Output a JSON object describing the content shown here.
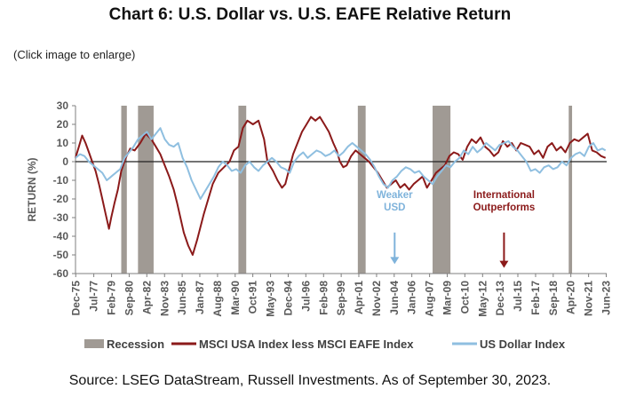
{
  "header": {
    "title": "Chart 6: U.S. Dollar vs. U.S. EAFE Relative Return",
    "note": "(Click image to enlarge)"
  },
  "footer": {
    "source": "Source: LSEG DataStream, Russell Investments. As of September 30, 2023."
  },
  "chart_data": {
    "type": "line",
    "title": "",
    "ylabel": "RETURN (%)",
    "xlabel": "",
    "ylim": [
      -60,
      30
    ],
    "y_ticks": [
      30,
      20,
      10,
      0,
      -10,
      -20,
      -30,
      -40,
      -50,
      -60
    ],
    "x_range": [
      1975.9,
      2023.5
    ],
    "x_tick_labels": [
      {
        "label": "Dec-75",
        "x": 1975.92
      },
      {
        "label": "Jul-77",
        "x": 1977.54
      },
      {
        "label": "Feb-79",
        "x": 1979.13
      },
      {
        "label": "Sep-80",
        "x": 1980.71
      },
      {
        "label": "Apr-82",
        "x": 1982.29
      },
      {
        "label": "Nov-83",
        "x": 1983.88
      },
      {
        "label": "Jun-85",
        "x": 1985.46
      },
      {
        "label": "Jan-87",
        "x": 1987.04
      },
      {
        "label": "Aug-88",
        "x": 1988.63
      },
      {
        "label": "Mar-90",
        "x": 1990.21
      },
      {
        "label": "Oct-91",
        "x": 1991.79
      },
      {
        "label": "May-93",
        "x": 1993.38
      },
      {
        "label": "Dec-94",
        "x": 1994.96
      },
      {
        "label": "Jul-96",
        "x": 1996.54
      },
      {
        "label": "Feb-98",
        "x": 1998.13
      },
      {
        "label": "Sep-99",
        "x": 1999.71
      },
      {
        "label": "Apr-01",
        "x": 2001.29
      },
      {
        "label": "Nov-02",
        "x": 2002.88
      },
      {
        "label": "Jun-04",
        "x": 2004.46
      },
      {
        "label": "Jan-06",
        "x": 2006.04
      },
      {
        "label": "Aug-07",
        "x": 2007.63
      },
      {
        "label": "Mar-09",
        "x": 2009.21
      },
      {
        "label": "Oct-10",
        "x": 2010.79
      },
      {
        "label": "May-12",
        "x": 2012.38
      },
      {
        "label": "Dec-13",
        "x": 2013.96
      },
      {
        "label": "Jul-15",
        "x": 2015.54
      },
      {
        "label": "Feb-17",
        "x": 2017.13
      },
      {
        "label": "Sep-18",
        "x": 2018.71
      },
      {
        "label": "Apr-20",
        "x": 2020.29
      },
      {
        "label": "Nov-21",
        "x": 2021.88
      },
      {
        "label": "Jun-23",
        "x": 2023.46
      }
    ],
    "recessions": [
      [
        1980.0,
        1980.5
      ],
      [
        1981.5,
        1982.9
      ],
      [
        1990.5,
        1991.2
      ],
      [
        2001.2,
        2001.9
      ],
      [
        2007.9,
        2009.5
      ],
      [
        2020.1,
        2020.4
      ]
    ],
    "series": [
      {
        "name": "MSCI USA Index less MSCI EAFE Index",
        "color": "#8b1a1a",
        "x": [
          1975.9,
          1976.2,
          1976.5,
          1976.8,
          1977.1,
          1977.4,
          1977.7,
          1978.0,
          1978.3,
          1978.6,
          1978.9,
          1979.1,
          1979.4,
          1979.7,
          1980.0,
          1980.4,
          1980.8,
          1981.2,
          1981.7,
          1982.2,
          1982.7,
          1983.1,
          1983.5,
          1983.9,
          1984.3,
          1984.7,
          1985.0,
          1985.3,
          1985.6,
          1986.0,
          1986.4,
          1986.8,
          1987.1,
          1987.4,
          1987.8,
          1988.2,
          1988.7,
          1989.2,
          1989.7,
          1990.1,
          1990.5,
          1990.9,
          1991.3,
          1991.8,
          1992.3,
          1992.8,
          1993.1,
          1993.6,
          1994.0,
          1994.4,
          1994.7,
          1995.0,
          1995.4,
          1995.8,
          1996.2,
          1996.6,
          1997.0,
          1997.4,
          1997.8,
          1998.2,
          1998.6,
          1999.0,
          1999.3,
          1999.6,
          1999.9,
          2000.2,
          2000.6,
          2001.0,
          2001.4,
          2001.8,
          2002.2,
          2002.6,
          2003.0,
          2003.4,
          2003.8,
          2004.2,
          2004.6,
          2005.0,
          2005.4,
          2005.8,
          2006.2,
          2006.6,
          2007.0,
          2007.4,
          2007.8,
          2008.2,
          2008.6,
          2009.0,
          2009.4,
          2009.8,
          2010.2,
          2010.6,
          2011.0,
          2011.4,
          2011.8,
          2012.2,
          2012.6,
          2013.0,
          2013.4,
          2013.8,
          2014.2,
          2014.6,
          2015.0,
          2015.4,
          2015.8,
          2016.2,
          2016.6,
          2017.0,
          2017.4,
          2017.8,
          2018.2,
          2018.6,
          2019.0,
          2019.4,
          2019.8,
          2020.2,
          2020.6,
          2021.0,
          2021.4,
          2021.8,
          2022.2,
          2022.6,
          2023.0,
          2023.4
        ],
        "values": [
          2,
          8,
          14,
          10,
          5,
          0,
          -5,
          -12,
          -20,
          -28,
          -36,
          -30,
          -22,
          -15,
          -5,
          2,
          7,
          6,
          10,
          15,
          12,
          8,
          4,
          -2,
          -8,
          -15,
          -22,
          -30,
          -38,
          -45,
          -50,
          -42,
          -35,
          -28,
          -20,
          -12,
          -6,
          -3,
          0,
          6,
          8,
          18,
          22,
          20,
          22,
          12,
          0,
          -5,
          -10,
          -14,
          -12,
          -5,
          4,
          10,
          16,
          20,
          24,
          22,
          24,
          20,
          16,
          10,
          6,
          0,
          -3,
          -2,
          3,
          6,
          4,
          2,
          0,
          -3,
          -6,
          -10,
          -14,
          -12,
          -10,
          -14,
          -12,
          -15,
          -12,
          -10,
          -8,
          -14,
          -10,
          -6,
          -4,
          -2,
          3,
          5,
          4,
          1,
          8,
          12,
          10,
          13,
          8,
          6,
          3,
          5,
          11,
          8,
          10,
          6,
          10,
          9,
          8,
          4,
          6,
          2,
          8,
          10,
          6,
          8,
          5,
          10,
          12,
          11,
          13,
          15,
          6,
          5,
          3,
          2
        ]
      },
      {
        "name": "US Dollar Index",
        "color": "#8fbfe0",
        "x": [
          1975.9,
          1976.3,
          1976.7,
          1977.1,
          1977.5,
          1977.9,
          1978.3,
          1978.7,
          1979.1,
          1979.5,
          1979.9,
          1980.3,
          1980.7,
          1981.1,
          1981.5,
          1981.9,
          1982.3,
          1982.7,
          1983.1,
          1983.5,
          1983.9,
          1984.3,
          1984.7,
          1985.1,
          1985.5,
          1985.9,
          1986.3,
          1986.7,
          1987.1,
          1987.5,
          1987.9,
          1988.3,
          1988.7,
          1989.1,
          1989.5,
          1989.9,
          1990.3,
          1990.7,
          1991.1,
          1991.5,
          1991.9,
          1992.3,
          1992.7,
          1993.1,
          1993.5,
          1993.9,
          1994.3,
          1994.7,
          1995.1,
          1995.5,
          1995.9,
          1996.3,
          1996.7,
          1997.1,
          1997.5,
          1997.9,
          1998.3,
          1998.7,
          1999.1,
          1999.5,
          1999.9,
          2000.3,
          2000.7,
          2001.1,
          2001.5,
          2001.9,
          2002.3,
          2002.7,
          2003.1,
          2003.5,
          2003.9,
          2004.3,
          2004.7,
          2005.1,
          2005.5,
          2005.9,
          2006.3,
          2006.7,
          2007.1,
          2007.5,
          2007.9,
          2008.3,
          2008.7,
          2009.1,
          2009.5,
          2009.9,
          2010.3,
          2010.7,
          2011.1,
          2011.5,
          2011.9,
          2012.3,
          2012.7,
          2013.1,
          2013.5,
          2013.9,
          2014.3,
          2014.7,
          2015.1,
          2015.5,
          2015.9,
          2016.3,
          2016.7,
          2017.1,
          2017.5,
          2017.9,
          2018.3,
          2018.7,
          2019.1,
          2019.5,
          2019.9,
          2020.3,
          2020.7,
          2021.1,
          2021.5,
          2021.9,
          2022.3,
          2022.7,
          2023.1,
          2023.4
        ],
        "values": [
          2,
          4,
          3,
          0,
          -2,
          -4,
          -6,
          -10,
          -8,
          -6,
          -4,
          2,
          5,
          8,
          12,
          14,
          16,
          12,
          15,
          18,
          12,
          9,
          8,
          10,
          2,
          -3,
          -10,
          -15,
          -20,
          -16,
          -12,
          -8,
          -3,
          0,
          -2,
          -5,
          -4,
          -6,
          -2,
          0,
          -3,
          -5,
          -2,
          0,
          2,
          0,
          -3,
          -4,
          -6,
          0,
          3,
          5,
          2,
          4,
          6,
          5,
          3,
          4,
          6,
          3,
          5,
          8,
          10,
          8,
          6,
          4,
          1,
          -3,
          -8,
          -12,
          -14,
          -10,
          -8,
          -5,
          -3,
          -4,
          -6,
          -5,
          -8,
          -10,
          -12,
          -8,
          -5,
          -2,
          -3,
          0,
          2,
          6,
          4,
          8,
          5,
          7,
          10,
          8,
          6,
          9,
          10,
          11,
          8,
          6,
          3,
          0,
          -5,
          -4,
          -6,
          -3,
          -2,
          -4,
          -3,
          0,
          -2,
          2,
          4,
          5,
          3,
          8,
          10,
          6,
          7,
          6
        ]
      }
    ],
    "recession_color": "#a09a94",
    "legend": {
      "placement": "bottom",
      "items": [
        "Recession",
        "MSCI USA Index less MSCI EAFE Index",
        "US Dollar Index"
      ]
    },
    "annotations": [
      {
        "text_lines": [
          "Weaker",
          "USD"
        ],
        "color": "#7fb3db",
        "x": 2004.5,
        "y_text": -28,
        "arrow_from": -38,
        "arrow_to": -54
      },
      {
        "text_lines": [
          "International",
          "Outperforms"
        ],
        "color": "#8b1a1a",
        "x": 2014.3,
        "y_text": -28,
        "arrow_from": -38,
        "arrow_to": -56
      }
    ]
  }
}
